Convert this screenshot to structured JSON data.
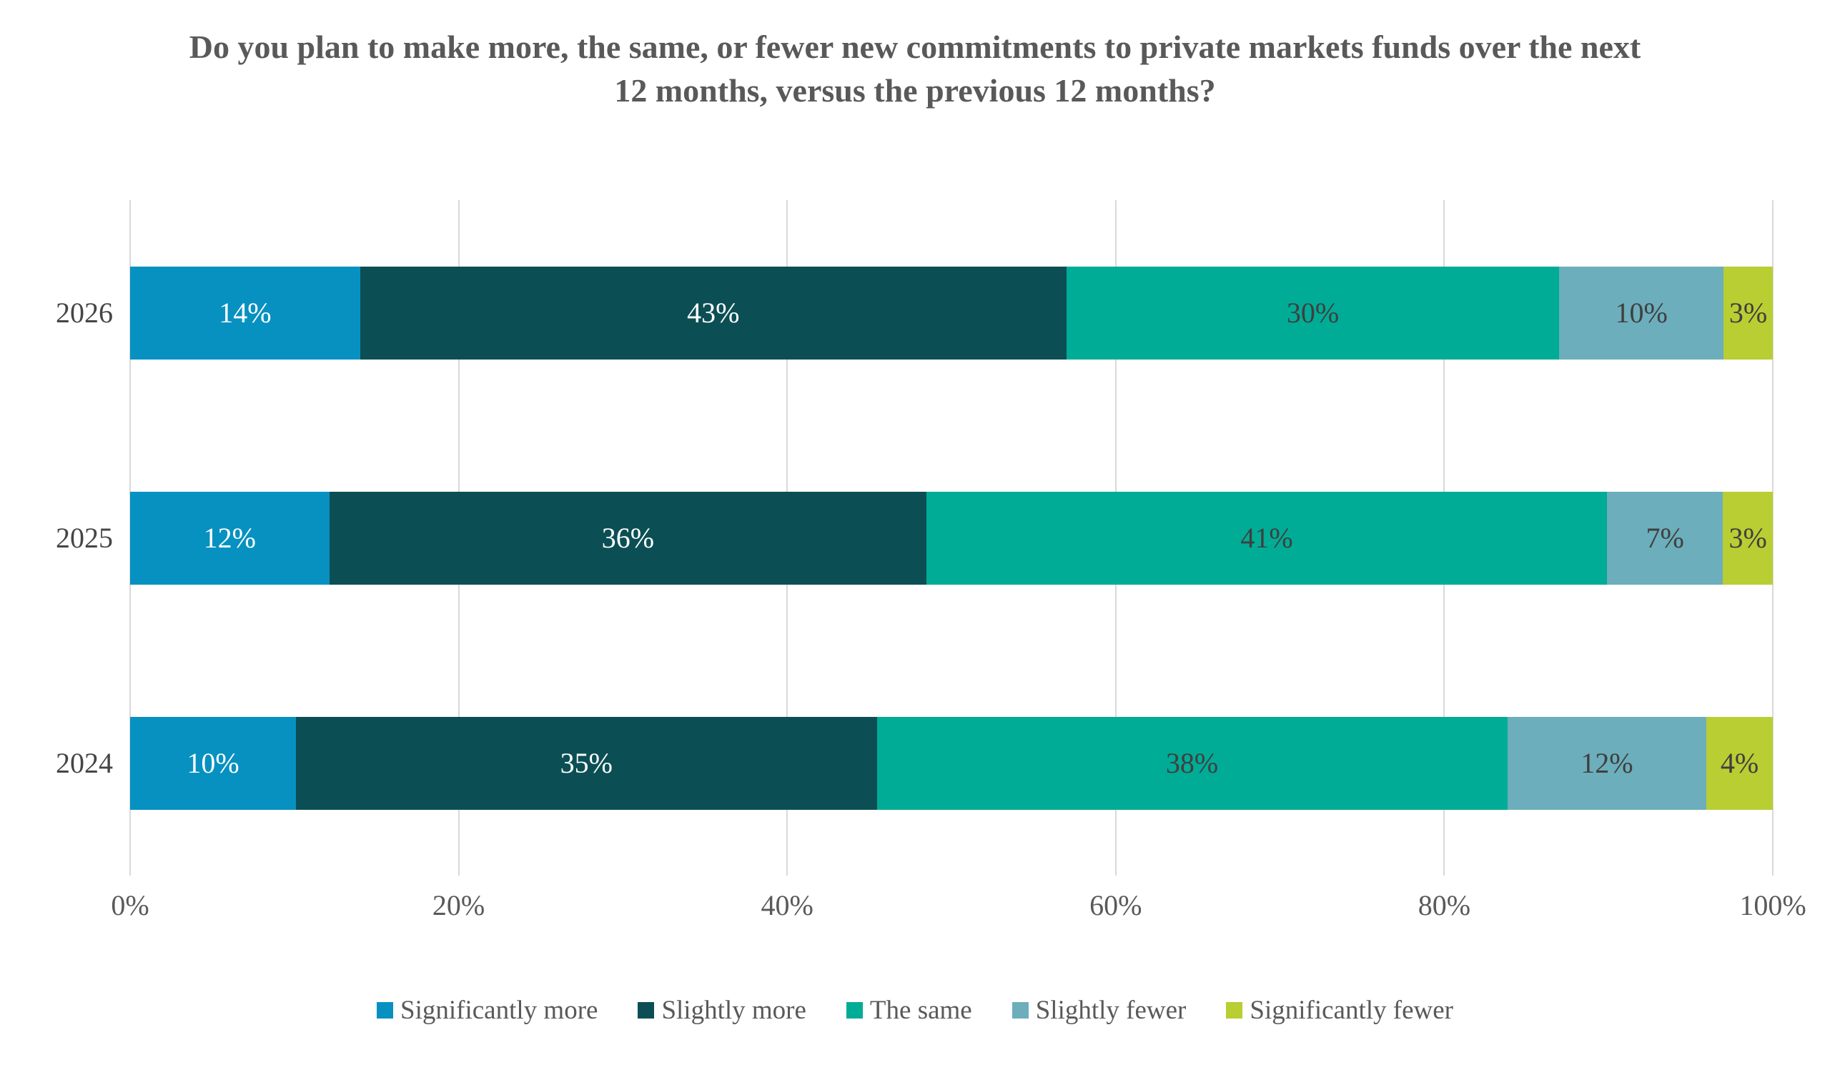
{
  "chart_data": {
    "type": "bar",
    "orientation": "horizontal",
    "stacked": "100%",
    "title": "Do you plan to make more, the same, or fewer new commitments to private markets funds over the next 12 months, versus the previous 12 months?",
    "categories": [
      "2026",
      "2025",
      "2024"
    ],
    "series": [
      {
        "name": "Significantly more",
        "color": "#0791c1",
        "label_style": "light",
        "values": [
          14,
          12,
          10
        ]
      },
      {
        "name": "Slightly more",
        "color": "#0b4f55",
        "label_style": "light",
        "values": [
          43,
          36,
          35
        ]
      },
      {
        "name": "The same",
        "color": "#00ac96",
        "label_style": "dark",
        "values": [
          30,
          41,
          38
        ]
      },
      {
        "name": "Slightly fewer",
        "color": "#6caebb",
        "label_style": "dark",
        "values": [
          10,
          7,
          12
        ]
      },
      {
        "name": "Significantly fewer",
        "color": "#b8ce32",
        "label_style": "dark",
        "values": [
          3,
          3,
          4
        ]
      }
    ],
    "value_suffix": "%",
    "x_axis": {
      "tick_labels": [
        "0%",
        "20%",
        "40%",
        "60%",
        "80%",
        "100%"
      ],
      "range": [
        0,
        100
      ],
      "gridlines": true
    },
    "legend_position": "bottom",
    "colors": {
      "title_text": "#595959",
      "tick_text": "#595959",
      "category_text": "#454545",
      "legend_text": "#595959",
      "segment_label_light": "#ffffff",
      "segment_label_dark": "#3f3f3f",
      "gridline": "#d9d9d9",
      "background": "#ffffff"
    }
  }
}
